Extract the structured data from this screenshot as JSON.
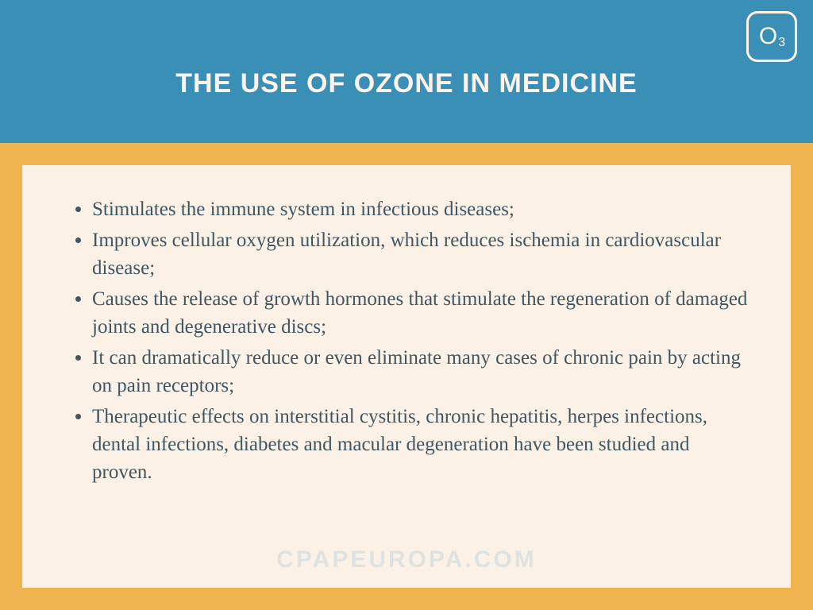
{
  "header": {
    "title": "THE USE OF OZONE IN MEDICINE",
    "icon_symbol_main": "O",
    "icon_symbol_sub": "3",
    "background_color": "#3a8fb7",
    "title_color": "#fdf3ea",
    "title_fontsize": 34,
    "icon_border_color": "#fdf3ea"
  },
  "body": {
    "frame_color": "#f0b451",
    "content_background": "#fcf1e6",
    "text_color": "#3f5763",
    "bullet_fontsize": 25,
    "bullets": [
      "Stimulates the immune system in infectious diseases;",
      "Improves cellular oxygen utilization, which reduces ischemia in cardiovascular disease;",
      "Causes the release of growth hormones that stimulate the regeneration of damaged joints and degenerative discs;",
      "It can dramatically reduce or even eliminate many cases of chronic pain by acting on pain receptors;",
      "Therapeutic effects on interstitial cystitis, chronic hepatitis, herpes infections, dental infections, diabetes and macular degeneration have been studied and proven."
    ]
  },
  "watermark": {
    "text": "CPAPEUROPA.COM",
    "color": "#c9d6dc",
    "fontsize": 30
  }
}
